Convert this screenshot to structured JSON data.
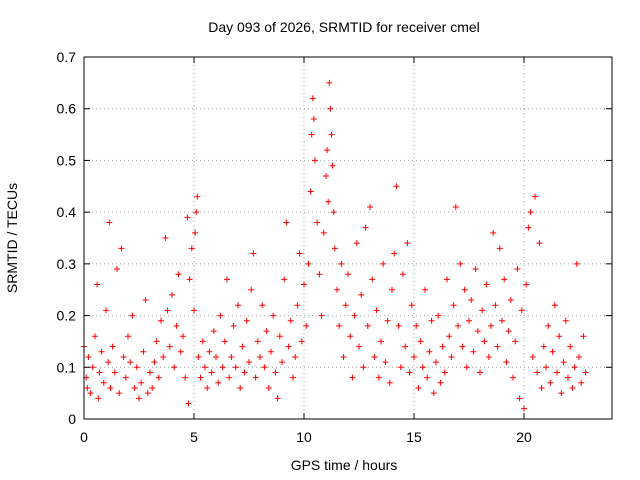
{
  "chart_data": {
    "type": "scatter",
    "title": "Day 093 of 2026, SRMTID for receiver cmel",
    "xlabel": "GPS time / hours",
    "ylabel": "SRMTID / TECUs",
    "xlim": [
      0,
      24
    ],
    "ylim": [
      0,
      0.7
    ],
    "xticks": [
      0,
      5,
      10,
      15,
      20
    ],
    "xtick_labels": [
      "0",
      "5",
      "10",
      "15",
      "20"
    ],
    "yticks": [
      0,
      0.1,
      0.2,
      0.3,
      0.4,
      0.5,
      0.6,
      0.7
    ],
    "ytick_labels": [
      "0",
      "0.1",
      "0.2",
      "0.3",
      "0.4",
      "0.5",
      "0.6",
      "0.7"
    ],
    "grid": true,
    "marker": "plus",
    "series": [
      {
        "name": "SRMTID",
        "color": "#ff0000",
        "points": [
          [
            0.0,
            0.14
          ],
          [
            0.1,
            0.08
          ],
          [
            0.15,
            0.06
          ],
          [
            0.2,
            0.12
          ],
          [
            0.3,
            0.05
          ],
          [
            0.4,
            0.1
          ],
          [
            0.5,
            0.16
          ],
          [
            0.6,
            0.26
          ],
          [
            0.65,
            0.04
          ],
          [
            0.7,
            0.09
          ],
          [
            0.8,
            0.13
          ],
          [
            0.9,
            0.07
          ],
          [
            1.0,
            0.21
          ],
          [
            1.1,
            0.11
          ],
          [
            1.15,
            0.38
          ],
          [
            1.2,
            0.06
          ],
          [
            1.3,
            0.14
          ],
          [
            1.4,
            0.09
          ],
          [
            1.5,
            0.29
          ],
          [
            1.6,
            0.05
          ],
          [
            1.7,
            0.33
          ],
          [
            1.8,
            0.12
          ],
          [
            1.9,
            0.08
          ],
          [
            2.0,
            0.16
          ],
          [
            2.1,
            0.11
          ],
          [
            2.2,
            0.2
          ],
          [
            2.3,
            0.06
          ],
          [
            2.4,
            0.1
          ],
          [
            2.5,
            0.04
          ],
          [
            2.6,
            0.07
          ],
          [
            2.7,
            0.13
          ],
          [
            2.8,
            0.23
          ],
          [
            2.9,
            0.05
          ],
          [
            3.0,
            0.09
          ],
          [
            3.1,
            0.06
          ],
          [
            3.2,
            0.11
          ],
          [
            3.3,
            0.15
          ],
          [
            3.4,
            0.08
          ],
          [
            3.5,
            0.19
          ],
          [
            3.6,
            0.12
          ],
          [
            3.7,
            0.35
          ],
          [
            3.8,
            0.21
          ],
          [
            3.9,
            0.14
          ],
          [
            4.0,
            0.24
          ],
          [
            4.1,
            0.1
          ],
          [
            4.2,
            0.18
          ],
          [
            4.3,
            0.28
          ],
          [
            4.4,
            0.13
          ],
          [
            4.5,
            0.16
          ],
          [
            4.6,
            0.08
          ],
          [
            4.7,
            0.39
          ],
          [
            4.75,
            0.03
          ],
          [
            4.8,
            0.27
          ],
          [
            4.9,
            0.33
          ],
          [
            5.0,
            0.21
          ],
          [
            5.05,
            0.36
          ],
          [
            5.1,
            0.4
          ],
          [
            5.15,
            0.43
          ],
          [
            5.2,
            0.12
          ],
          [
            5.3,
            0.08
          ],
          [
            5.4,
            0.15
          ],
          [
            5.5,
            0.1
          ],
          [
            5.6,
            0.06
          ],
          [
            5.7,
            0.13
          ],
          [
            5.8,
            0.09
          ],
          [
            5.9,
            0.17
          ],
          [
            6.0,
            0.12
          ],
          [
            6.1,
            0.07
          ],
          [
            6.2,
            0.2
          ],
          [
            6.3,
            0.1
          ],
          [
            6.4,
            0.15
          ],
          [
            6.5,
            0.27
          ],
          [
            6.6,
            0.08
          ],
          [
            6.7,
            0.12
          ],
          [
            6.8,
            0.18
          ],
          [
            6.9,
            0.1
          ],
          [
            7.0,
            0.22
          ],
          [
            7.1,
            0.06
          ],
          [
            7.2,
            0.14
          ],
          [
            7.3,
            0.09
          ],
          [
            7.4,
            0.19
          ],
          [
            7.5,
            0.11
          ],
          [
            7.6,
            0.25
          ],
          [
            7.7,
            0.32
          ],
          [
            7.8,
            0.08
          ],
          [
            7.9,
            0.15
          ],
          [
            8.0,
            0.12
          ],
          [
            8.1,
            0.22
          ],
          [
            8.2,
            0.1
          ],
          [
            8.3,
            0.17
          ],
          [
            8.4,
            0.06
          ],
          [
            8.5,
            0.13
          ],
          [
            8.6,
            0.2
          ],
          [
            8.7,
            0.09
          ],
          [
            8.8,
            0.04
          ],
          [
            8.9,
            0.16
          ],
          [
            9.0,
            0.11
          ],
          [
            9.1,
            0.27
          ],
          [
            9.2,
            0.38
          ],
          [
            9.3,
            0.14
          ],
          [
            9.4,
            0.19
          ],
          [
            9.5,
            0.08
          ],
          [
            9.6,
            0.12
          ],
          [
            9.7,
            0.22
          ],
          [
            9.8,
            0.32
          ],
          [
            9.9,
            0.15
          ],
          [
            10.0,
            0.26
          ],
          [
            10.1,
            0.18
          ],
          [
            10.2,
            0.3
          ],
          [
            10.3,
            0.44
          ],
          [
            10.35,
            0.55
          ],
          [
            10.4,
            0.62
          ],
          [
            10.45,
            0.58
          ],
          [
            10.5,
            0.5
          ],
          [
            10.6,
            0.38
          ],
          [
            10.7,
            0.28
          ],
          [
            10.8,
            0.2
          ],
          [
            10.9,
            0.36
          ],
          [
            11.0,
            0.47
          ],
          [
            11.05,
            0.52
          ],
          [
            11.1,
            0.42
          ],
          [
            11.15,
            0.65
          ],
          [
            11.2,
            0.6
          ],
          [
            11.25,
            0.55
          ],
          [
            11.3,
            0.49
          ],
          [
            11.35,
            0.4
          ],
          [
            11.4,
            0.33
          ],
          [
            11.5,
            0.25
          ],
          [
            11.6,
            0.18
          ],
          [
            11.7,
            0.3
          ],
          [
            11.8,
            0.12
          ],
          [
            11.9,
            0.22
          ],
          [
            12.0,
            0.28
          ],
          [
            12.1,
            0.16
          ],
          [
            12.2,
            0.08
          ],
          [
            12.3,
            0.2
          ],
          [
            12.4,
            0.34
          ],
          [
            12.5,
            0.14
          ],
          [
            12.6,
            0.24
          ],
          [
            12.7,
            0.1
          ],
          [
            12.8,
            0.37
          ],
          [
            12.9,
            0.18
          ],
          [
            13.0,
            0.41
          ],
          [
            13.1,
            0.27
          ],
          [
            13.2,
            0.12
          ],
          [
            13.3,
            0.21
          ],
          [
            13.4,
            0.08
          ],
          [
            13.5,
            0.15
          ],
          [
            13.6,
            0.3
          ],
          [
            13.7,
            0.11
          ],
          [
            13.8,
            0.19
          ],
          [
            13.9,
            0.07
          ],
          [
            14.0,
            0.25
          ],
          [
            14.1,
            0.32
          ],
          [
            14.2,
            0.45
          ],
          [
            14.3,
            0.18
          ],
          [
            14.4,
            0.1
          ],
          [
            14.5,
            0.28
          ],
          [
            14.6,
            0.14
          ],
          [
            14.7,
            0.34
          ],
          [
            14.8,
            0.09
          ],
          [
            14.9,
            0.22
          ],
          [
            15.0,
            0.12
          ],
          [
            15.1,
            0.18
          ],
          [
            15.2,
            0.06
          ],
          [
            15.3,
            0.15
          ],
          [
            15.4,
            0.1
          ],
          [
            15.5,
            0.25
          ],
          [
            15.6,
            0.08
          ],
          [
            15.7,
            0.13
          ],
          [
            15.8,
            0.19
          ],
          [
            15.9,
            0.05
          ],
          [
            16.0,
            0.11
          ],
          [
            16.1,
            0.2
          ],
          [
            16.2,
            0.07
          ],
          [
            16.3,
            0.14
          ],
          [
            16.4,
            0.09
          ],
          [
            16.5,
            0.27
          ],
          [
            16.6,
            0.16
          ],
          [
            16.7,
            0.12
          ],
          [
            16.8,
            0.22
          ],
          [
            16.9,
            0.41
          ],
          [
            17.0,
            0.18
          ],
          [
            17.1,
            0.3
          ],
          [
            17.2,
            0.14
          ],
          [
            17.3,
            0.25
          ],
          [
            17.4,
            0.1
          ],
          [
            17.5,
            0.19
          ],
          [
            17.6,
            0.23
          ],
          [
            17.7,
            0.13
          ],
          [
            17.8,
            0.29
          ],
          [
            17.9,
            0.17
          ],
          [
            18.0,
            0.09
          ],
          [
            18.1,
            0.21
          ],
          [
            18.2,
            0.15
          ],
          [
            18.3,
            0.26
          ],
          [
            18.4,
            0.12
          ],
          [
            18.5,
            0.18
          ],
          [
            18.6,
            0.36
          ],
          [
            18.7,
            0.22
          ],
          [
            18.8,
            0.14
          ],
          [
            18.9,
            0.33
          ],
          [
            19.0,
            0.19
          ],
          [
            19.1,
            0.27
          ],
          [
            19.2,
            0.11
          ],
          [
            19.3,
            0.17
          ],
          [
            19.4,
            0.23
          ],
          [
            19.5,
            0.08
          ],
          [
            19.6,
            0.15
          ],
          [
            19.7,
            0.29
          ],
          [
            19.8,
            0.04
          ],
          [
            19.9,
            0.21
          ],
          [
            20.0,
            0.02
          ],
          [
            20.1,
            0.26
          ],
          [
            20.2,
            0.37
          ],
          [
            20.3,
            0.4
          ],
          [
            20.4,
            0.12
          ],
          [
            20.5,
            0.43
          ],
          [
            20.6,
            0.09
          ],
          [
            20.7,
            0.34
          ],
          [
            20.8,
            0.06
          ],
          [
            20.9,
            0.14
          ],
          [
            21.0,
            0.1
          ],
          [
            21.1,
            0.18
          ],
          [
            21.2,
            0.07
          ],
          [
            21.3,
            0.13
          ],
          [
            21.4,
            0.22
          ],
          [
            21.5,
            0.09
          ],
          [
            21.6,
            0.16
          ],
          [
            21.7,
            0.05
          ],
          [
            21.8,
            0.11
          ],
          [
            21.9,
            0.19
          ],
          [
            22.0,
            0.08
          ],
          [
            22.1,
            0.14
          ],
          [
            22.2,
            0.06
          ],
          [
            22.3,
            0.1
          ],
          [
            22.4,
            0.3
          ],
          [
            22.5,
            0.12
          ],
          [
            22.6,
            0.07
          ],
          [
            22.7,
            0.16
          ],
          [
            22.8,
            0.09
          ]
        ]
      }
    ]
  }
}
